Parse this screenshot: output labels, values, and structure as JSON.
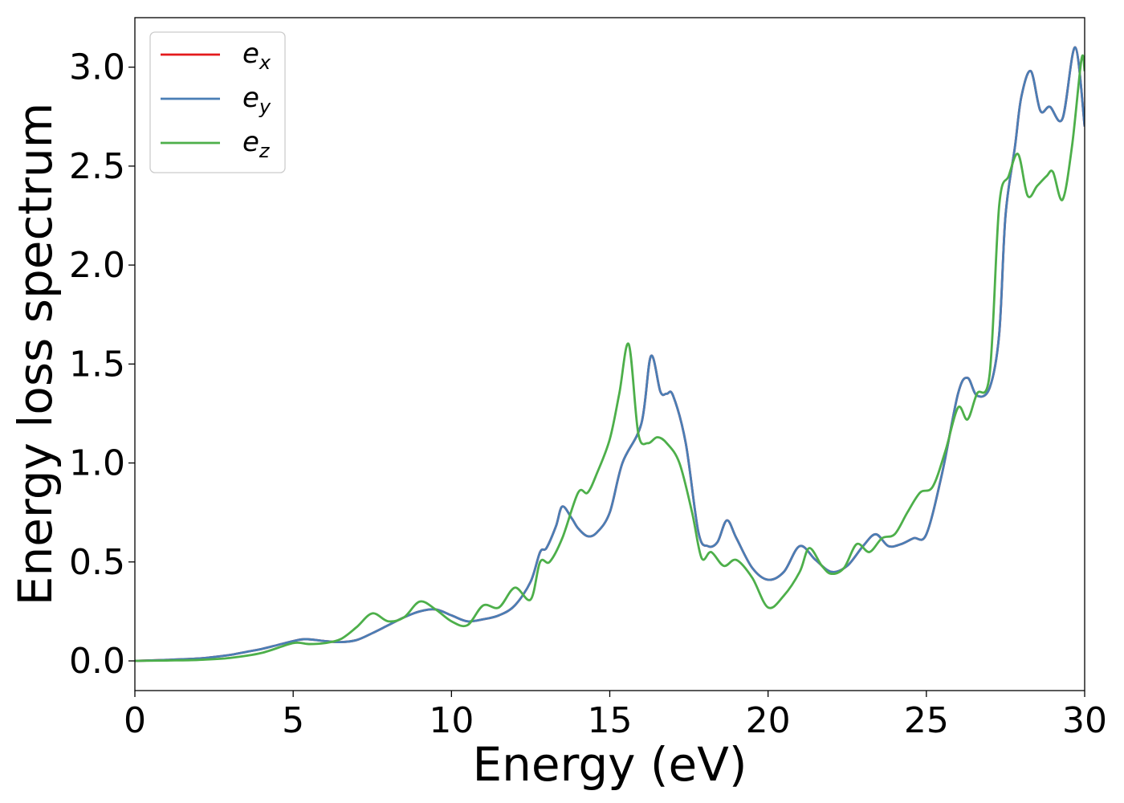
{
  "chart_data": {
    "type": "line",
    "title": "",
    "xlabel": "Energy (eV)",
    "ylabel": "Energy loss spectrum",
    "xlim": [
      0,
      30
    ],
    "ylim": [
      -0.15,
      3.25
    ],
    "xticks": [
      0,
      5,
      10,
      15,
      20,
      25,
      30
    ],
    "xtick_labels": [
      "0",
      "5",
      "10",
      "15",
      "20",
      "25",
      "30"
    ],
    "yticks": [
      0.0,
      0.5,
      1.0,
      1.5,
      2.0,
      2.5,
      3.0
    ],
    "ytick_labels": [
      "0.0",
      "0.5",
      "1.0",
      "1.5",
      "2.0",
      "2.5",
      "3.0"
    ],
    "grid": false,
    "legend_position": "top-left",
    "series": [
      {
        "name": "e",
        "subscript": "x",
        "color": "#e41a1c",
        "x": [
          0,
          1,
          2,
          2.5,
          3,
          3.5,
          4,
          4.5,
          5,
          5.4,
          6,
          6.5,
          7,
          7.5,
          8,
          8.5,
          9,
          9.5,
          10,
          10.5,
          11,
          11.5,
          12,
          12.5,
          12.8,
          13,
          13.3,
          13.5,
          13.8,
          14,
          14.3,
          14.6,
          15,
          15.4,
          16,
          16.3,
          16.6,
          16.8,
          17,
          17.4,
          17.8,
          18.1,
          18.4,
          18.7,
          19,
          19.5,
          20,
          20.5,
          21,
          21.5,
          22,
          22.5,
          23,
          23.4,
          23.8,
          24.2,
          24.6,
          25,
          25.5,
          26,
          26.3,
          26.6,
          27,
          27.3,
          27.5,
          27.8,
          28,
          28.3,
          28.6,
          28.9,
          29.3,
          29.7,
          30
        ],
        "values": [
          0.0,
          0.005,
          0.012,
          0.02,
          0.03,
          0.045,
          0.06,
          0.08,
          0.1,
          0.11,
          0.1,
          0.095,
          0.105,
          0.14,
          0.18,
          0.22,
          0.25,
          0.26,
          0.23,
          0.2,
          0.21,
          0.23,
          0.28,
          0.4,
          0.55,
          0.57,
          0.68,
          0.78,
          0.72,
          0.67,
          0.63,
          0.65,
          0.75,
          1.0,
          1.2,
          1.54,
          1.36,
          1.35,
          1.34,
          1.1,
          0.65,
          0.58,
          0.6,
          0.71,
          0.62,
          0.47,
          0.41,
          0.45,
          0.58,
          0.51,
          0.45,
          0.48,
          0.58,
          0.64,
          0.58,
          0.59,
          0.62,
          0.64,
          0.95,
          1.35,
          1.43,
          1.34,
          1.38,
          1.65,
          2.25,
          2.6,
          2.85,
          2.98,
          2.78,
          2.8,
          2.74,
          3.1,
          2.7
        ]
      },
      {
        "name": "e",
        "subscript": "y",
        "color": "#4a7eb5",
        "x": [
          0,
          1,
          2,
          2.5,
          3,
          3.5,
          4,
          4.5,
          5,
          5.4,
          6,
          6.5,
          7,
          7.5,
          8,
          8.5,
          9,
          9.5,
          10,
          10.5,
          11,
          11.5,
          12,
          12.5,
          12.8,
          13,
          13.3,
          13.5,
          13.8,
          14,
          14.3,
          14.6,
          15,
          15.4,
          16,
          16.3,
          16.6,
          16.8,
          17,
          17.4,
          17.8,
          18.1,
          18.4,
          18.7,
          19,
          19.5,
          20,
          20.5,
          21,
          21.5,
          22,
          22.5,
          23,
          23.4,
          23.8,
          24.2,
          24.6,
          25,
          25.5,
          26,
          26.3,
          26.6,
          27,
          27.3,
          27.5,
          27.8,
          28,
          28.3,
          28.6,
          28.9,
          29.3,
          29.7,
          30
        ],
        "values": [
          0.0,
          0.005,
          0.012,
          0.02,
          0.03,
          0.045,
          0.06,
          0.08,
          0.1,
          0.11,
          0.1,
          0.095,
          0.105,
          0.14,
          0.18,
          0.22,
          0.25,
          0.26,
          0.23,
          0.2,
          0.21,
          0.23,
          0.28,
          0.4,
          0.55,
          0.57,
          0.68,
          0.78,
          0.72,
          0.67,
          0.63,
          0.65,
          0.75,
          1.0,
          1.2,
          1.54,
          1.36,
          1.35,
          1.34,
          1.1,
          0.65,
          0.58,
          0.6,
          0.71,
          0.62,
          0.47,
          0.41,
          0.45,
          0.58,
          0.51,
          0.45,
          0.48,
          0.58,
          0.64,
          0.58,
          0.59,
          0.62,
          0.64,
          0.95,
          1.35,
          1.43,
          1.34,
          1.38,
          1.65,
          2.25,
          2.6,
          2.85,
          2.98,
          2.78,
          2.8,
          2.74,
          3.1,
          2.7
        ]
      },
      {
        "name": "e",
        "subscript": "z",
        "color": "#4daf4a",
        "x": [
          0,
          1,
          2,
          3,
          4,
          5,
          5.5,
          6,
          6.5,
          7,
          7.5,
          8,
          8.5,
          9,
          9.5,
          10,
          10.5,
          11,
          11.5,
          12,
          12.5,
          12.8,
          13.1,
          13.5,
          14,
          14.3,
          14.6,
          15,
          15.3,
          15.6,
          15.9,
          16.2,
          16.5,
          16.8,
          17.2,
          17.6,
          17.9,
          18.2,
          18.6,
          19,
          19.5,
          20,
          20.5,
          21,
          21.3,
          21.7,
          22,
          22.4,
          22.8,
          23.2,
          23.6,
          24,
          24.4,
          24.8,
          25.2,
          25.6,
          26,
          26.3,
          26.6,
          27,
          27.3,
          27.6,
          27.9,
          28.2,
          28.5,
          28.8,
          29,
          29.3,
          29.6,
          29.9,
          30
        ],
        "values": [
          0.0,
          0.002,
          0.005,
          0.015,
          0.04,
          0.09,
          0.085,
          0.09,
          0.11,
          0.17,
          0.24,
          0.2,
          0.22,
          0.3,
          0.26,
          0.2,
          0.18,
          0.28,
          0.27,
          0.37,
          0.31,
          0.5,
          0.5,
          0.62,
          0.85,
          0.85,
          0.95,
          1.12,
          1.35,
          1.6,
          1.15,
          1.1,
          1.13,
          1.1,
          1.0,
          0.75,
          0.52,
          0.55,
          0.48,
          0.51,
          0.42,
          0.27,
          0.33,
          0.45,
          0.57,
          0.48,
          0.44,
          0.47,
          0.59,
          0.55,
          0.62,
          0.64,
          0.75,
          0.85,
          0.88,
          1.06,
          1.28,
          1.22,
          1.35,
          1.45,
          2.3,
          2.45,
          2.56,
          2.35,
          2.4,
          2.45,
          2.47,
          2.33,
          2.6,
          3.04,
          2.98
        ]
      }
    ]
  }
}
